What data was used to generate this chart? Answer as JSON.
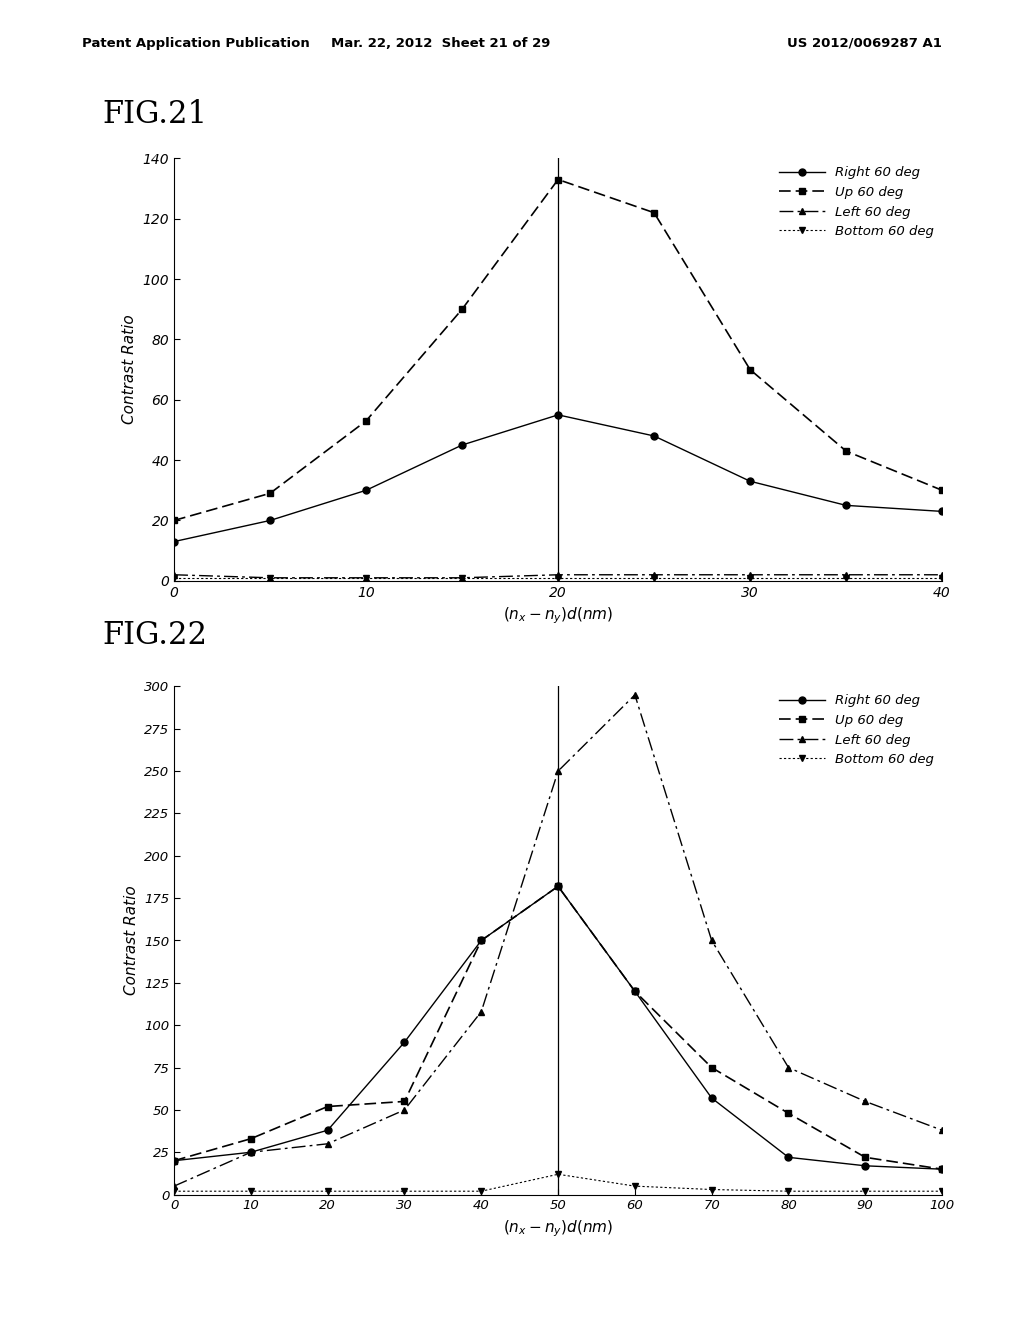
{
  "header_left": "Patent Application Publication",
  "header_mid": "Mar. 22, 2012  Sheet 21 of 29",
  "header_right": "US 2012/0069287 A1",
  "fig21": {
    "title": "FIG.21",
    "x": [
      0,
      5,
      10,
      15,
      20,
      25,
      30,
      35,
      40
    ],
    "right_60": [
      13,
      20,
      30,
      45,
      55,
      48,
      33,
      25,
      23
    ],
    "up_60": [
      20,
      29,
      53,
      90,
      133,
      122,
      70,
      43,
      30
    ],
    "left_60": [
      2,
      1,
      1,
      1,
      2,
      2,
      2,
      2,
      2
    ],
    "bottom_60": [
      1,
      1,
      1,
      1,
      1,
      1,
      1,
      1,
      1
    ],
    "vline_x": 20,
    "xlim": [
      0,
      40
    ],
    "ylim": [
      0,
      140
    ],
    "yticks": [
      0,
      20,
      40,
      60,
      80,
      100,
      120,
      140
    ],
    "xticks": [
      0,
      10,
      20,
      30,
      40
    ],
    "xlabel": "$(n_x-n_y)d(nm)$",
    "ylabel": "Contrast Ratio"
  },
  "fig22": {
    "title": "FIG.22",
    "x": [
      0,
      10,
      20,
      30,
      40,
      50,
      60,
      70,
      80,
      90,
      100
    ],
    "right_60": [
      20,
      25,
      38,
      90,
      150,
      182,
      120,
      57,
      22,
      17,
      15
    ],
    "up_60": [
      20,
      33,
      52,
      55,
      150,
      182,
      120,
      75,
      48,
      22,
      15
    ],
    "left_60": [
      5,
      25,
      30,
      50,
      108,
      250,
      295,
      150,
      75,
      55,
      38
    ],
    "bottom_60": [
      2,
      2,
      2,
      2,
      2,
      12,
      5,
      3,
      2,
      2,
      2
    ],
    "vline_x": 50,
    "xlim": [
      0,
      100
    ],
    "ylim": [
      0,
      300
    ],
    "yticks": [
      0,
      25,
      50,
      75,
      100,
      125,
      150,
      175,
      200,
      225,
      250,
      275,
      300
    ],
    "xticks": [
      0,
      10,
      20,
      30,
      40,
      50,
      60,
      70,
      80,
      90,
      100
    ],
    "xlabel": "$(n_x-n_y)d(nm)$",
    "ylabel": "Contrast Ratio"
  },
  "legend_labels": [
    "Right 60 deg",
    "Up 60 deg",
    "Left 60 deg",
    "Bottom 60 deg"
  ],
  "bg_color": "#ffffff"
}
